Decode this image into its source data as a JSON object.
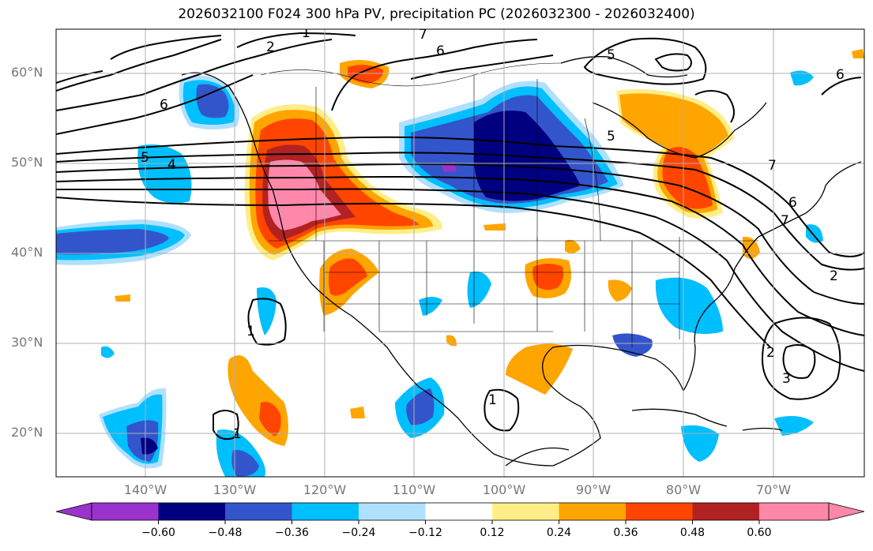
{
  "title": "2026032100 F024 300 hPa PV, precipitation PC (2026032300 - 2026032400)",
  "lat_labels": [
    "60°N",
    "50°N",
    "40°N",
    "30°N",
    "20°N"
  ],
  "lon_labels": [
    "140°W",
    "130°W",
    "120°W",
    "110°W",
    "100°W",
    "90°W",
    "80°W",
    "70°W"
  ],
  "pv_contour_labels": [
    "1",
    "2",
    "6",
    "7",
    "5",
    "4",
    "6",
    "5",
    "5",
    "7",
    "6",
    "7",
    "2",
    "2",
    "3",
    "1",
    "1",
    "1",
    "6"
  ],
  "colorbar": {
    "tick_labels": [
      "−0.60",
      "−0.48",
      "−0.36",
      "−0.24",
      "−0.12",
      "0.12",
      "0.24",
      "0.36",
      "0.48",
      "0.60"
    ],
    "colors": [
      "#9933cc",
      "#000080",
      "#3355cc",
      "#00bfff",
      "#b0e0ff",
      "#ffffff",
      "#ffee88",
      "#ffa500",
      "#ff4500",
      "#b22222",
      "#ff88aa"
    ]
  },
  "palette": {
    "land_line": "#000000",
    "grid": "#b0b0b0",
    "contour": "#000000"
  }
}
